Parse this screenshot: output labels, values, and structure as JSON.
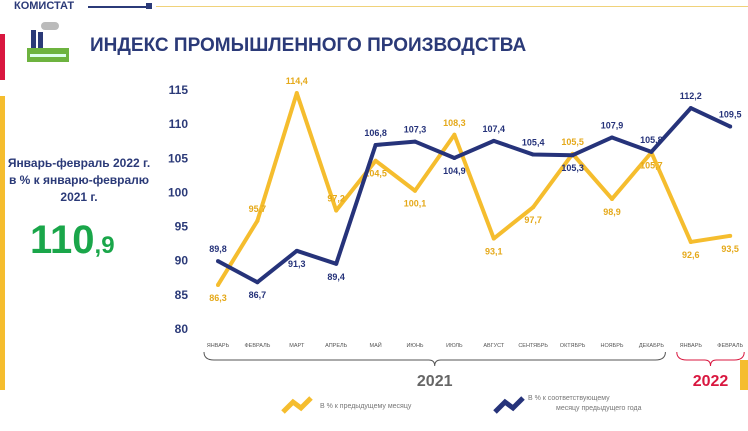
{
  "header": {
    "brand": "КОМИСТАТ",
    "title": "ИНДЕКС ПРОМЫШЛЕННОГО ПРОИЗВОДСТВА"
  },
  "summary": {
    "text": "Январь-февраль 2022 г. в % к январю-февралю 2021 г.",
    "value_int": "110",
    "value_dec": ",9"
  },
  "colors": {
    "yellow": "#f5bd2e",
    "blue": "#26337a",
    "red": "#d9173f",
    "green": "#1aa64a"
  },
  "chart_data": {
    "type": "line",
    "categories": [
      "ЯНВАРЬ",
      "ФЕВРАЛЬ",
      "МАРТ",
      "АПРЕЛЬ",
      "МАЙ",
      "ИЮНЬ",
      "ИЮЛЬ",
      "АВГУСТ",
      "СЕНТЯБРЬ",
      "ОКТЯБРЬ",
      "НОЯБРЬ",
      "ДЕКАБРЬ",
      "ЯНВАРЬ",
      "ФЕВРАЛЬ"
    ],
    "groups": [
      {
        "label": "2021",
        "from": 0,
        "to": 11
      },
      {
        "label": "2022",
        "from": 12,
        "to": 13
      }
    ],
    "ylim": [
      80,
      115
    ],
    "yticks": [
      80,
      85,
      90,
      95,
      100,
      105,
      110,
      115
    ],
    "series": [
      {
        "name": "В % к предыдущему месяцу",
        "color": "#f5bd2e",
        "values": [
          86.3,
          95.7,
          114.4,
          97.2,
          104.5,
          100.1,
          108.3,
          93.1,
          97.7,
          105.5,
          98.9,
          105.7,
          92.6,
          93.5
        ]
      },
      {
        "name": "В % к соответствующему месяцу предыдущего года",
        "color": "#26337a",
        "values": [
          89.8,
          86.7,
          91.3,
          89.4,
          106.8,
          107.3,
          104.9,
          107.4,
          105.4,
          105.3,
          107.9,
          105.8,
          112.2,
          109.5
        ]
      }
    ]
  }
}
